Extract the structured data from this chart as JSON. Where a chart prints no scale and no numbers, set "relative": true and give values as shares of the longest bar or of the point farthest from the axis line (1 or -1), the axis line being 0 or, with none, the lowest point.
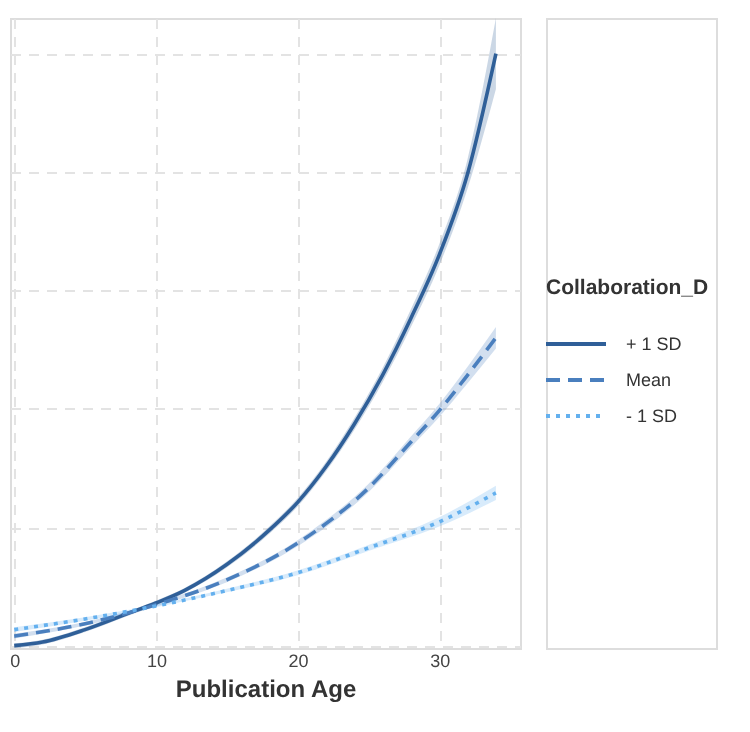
{
  "chart_data": {
    "type": "line",
    "xlabel": "Publication Age",
    "legend_title": "Collaboration_D",
    "relative": true,
    "xlim": [
      -0.3,
      35.7
    ],
    "xticks": [
      0,
      10,
      20,
      30
    ],
    "grid": true,
    "legend": "right",
    "marker": "none",
    "series": [
      {
        "name": "+ 1 SD",
        "color": "#2f5f98",
        "line_style": "solid",
        "x": [
          0,
          2,
          5,
          8,
          10,
          12,
          15,
          18,
          20,
          22,
          24,
          26,
          28,
          30,
          32,
          34
        ],
        "values": [
          0,
          0.006,
          0.027,
          0.054,
          0.072,
          0.093,
          0.137,
          0.195,
          0.242,
          0.302,
          0.374,
          0.457,
          0.553,
          0.66,
          0.797,
          1
        ],
        "lower": [
          -0.004,
          0.002,
          0.023,
          0.05,
          0.068,
          0.089,
          0.132,
          0.189,
          0.235,
          0.294,
          0.364,
          0.445,
          0.538,
          0.642,
          0.772,
          0.94
        ],
        "upper": [
          0.004,
          0.01,
          0.031,
          0.058,
          0.076,
          0.097,
          0.142,
          0.201,
          0.249,
          0.31,
          0.384,
          0.469,
          0.568,
          0.678,
          0.822,
          1.06
        ]
      },
      {
        "name": "Mean",
        "color": "#4a7fbe",
        "line_style": "dashed",
        "x": [
          0,
          5,
          10,
          15,
          20,
          22,
          25,
          28,
          30,
          32,
          34
        ],
        "values": [
          0.016,
          0.037,
          0.069,
          0.111,
          0.173,
          0.206,
          0.266,
          0.344,
          0.397,
          0.457,
          0.52
        ],
        "lower": [
          0.012,
          0.034,
          0.066,
          0.107,
          0.168,
          0.2,
          0.259,
          0.335,
          0.386,
          0.443,
          0.502
        ],
        "upper": [
          0.02,
          0.04,
          0.072,
          0.115,
          0.178,
          0.212,
          0.273,
          0.353,
          0.408,
          0.471,
          0.538
        ]
      },
      {
        "name": "- 1 SD",
        "color": "#64b0ee",
        "line_style": "dotted",
        "x": [
          0,
          5,
          10,
          15,
          20,
          25,
          30,
          34
        ],
        "values": [
          0.027,
          0.045,
          0.067,
          0.093,
          0.123,
          0.165,
          0.209,
          0.258
        ],
        "lower": [
          0.023,
          0.042,
          0.065,
          0.09,
          0.119,
          0.16,
          0.201,
          0.246
        ],
        "upper": [
          0.031,
          0.048,
          0.069,
          0.096,
          0.127,
          0.17,
          0.217,
          0.27
        ]
      }
    ]
  }
}
